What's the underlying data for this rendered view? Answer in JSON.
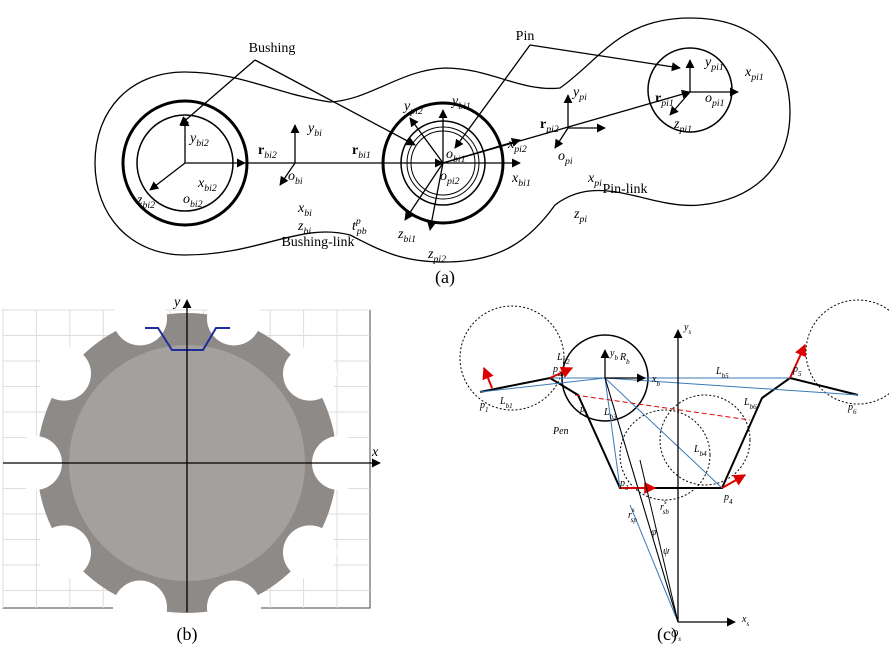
{
  "panel_a": {
    "callouts": [
      "Bushing",
      "Pin",
      "Pin-link",
      "Bushing-link"
    ],
    "symbols": [
      {
        "base": "y",
        "sub": "bi2"
      },
      {
        "base": "x",
        "sub": "bi2"
      },
      {
        "base": "z",
        "sub": "bi2"
      },
      {
        "base": "o",
        "sub": "bi2"
      },
      {
        "base": "r",
        "sub": "bi2"
      },
      {
        "base": "y",
        "sub": "bi"
      },
      {
        "base": "o",
        "sub": "bi"
      },
      {
        "base": "x",
        "sub": "bi"
      },
      {
        "base": "z",
        "sub": "bi"
      },
      {
        "base": "r",
        "sub": "bi1"
      },
      {
        "base": "t",
        "sub": "pb",
        "sup": "p"
      },
      {
        "base": "y",
        "sub": "pi2"
      },
      {
        "base": "y",
        "sub": "bi1"
      },
      {
        "base": "o",
        "sub": "bi1"
      },
      {
        "base": "o",
        "sub": "pi2"
      },
      {
        "base": "x",
        "sub": "pi2"
      },
      {
        "base": "x",
        "sub": "bi1"
      },
      {
        "base": "z",
        "sub": "bi1"
      },
      {
        "base": "z",
        "sub": "pi2"
      },
      {
        "base": "r",
        "sub": "pi2"
      },
      {
        "base": "y",
        "sub": "pi"
      },
      {
        "base": "o",
        "sub": "pi"
      },
      {
        "base": "x",
        "sub": "pi"
      },
      {
        "base": "z",
        "sub": "pi"
      },
      {
        "base": "r",
        "sub": "pi1"
      },
      {
        "base": "y",
        "sub": "pi1"
      },
      {
        "base": "x",
        "sub": "pi1"
      },
      {
        "base": "o",
        "sub": "pi1"
      },
      {
        "base": "z",
        "sub": "pi1"
      }
    ],
    "caption": "(a)"
  },
  "panel_b": {
    "x_axis": "x",
    "y_axis": "y",
    "caption": "(b)"
  },
  "panel_c": {
    "symbols": [
      {
        "base": "y",
        "sub": "s"
      },
      {
        "base": "y",
        "sub": "b"
      },
      {
        "base": "x",
        "sub": "b"
      },
      {
        "base": "R",
        "sub": "b"
      },
      {
        "base": "p",
        "sub": "1"
      },
      {
        "base": "p",
        "sub": "2"
      },
      {
        "base": "p",
        "sub": "3"
      },
      {
        "base": "p",
        "sub": "4"
      },
      {
        "base": "p",
        "sub": "5"
      },
      {
        "base": "p",
        "sub": "6"
      },
      {
        "base": "p",
        "sub": "i"
      },
      {
        "base": "L",
        "sub": "b1"
      },
      {
        "base": "L",
        "sub": "b2"
      },
      {
        "base": "L",
        "sub": "b3"
      },
      {
        "base": "L",
        "sub": "b4"
      },
      {
        "base": "L",
        "sub": "b5"
      },
      {
        "base": "L",
        "sub": "b6"
      },
      {
        "base": "Pen"
      },
      {
        "base": "r",
        "sub": "sp",
        "sup": "s"
      },
      {
        "base": "r",
        "sub": "sb",
        "sup": "s"
      },
      {
        "base": "φ"
      },
      {
        "base": "ψ"
      },
      {
        "base": "O",
        "sub": "s"
      },
      {
        "base": "x",
        "sub": "s"
      }
    ],
    "caption": "(c)"
  }
}
